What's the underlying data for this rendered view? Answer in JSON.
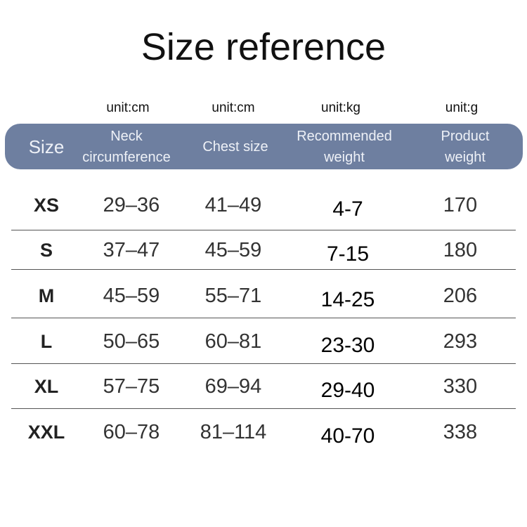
{
  "title": "Size reference",
  "units": [
    "unit:cm",
    "unit:cm",
    "unit:kg",
    "unit:g"
  ],
  "header": {
    "color": "#6e7fa0",
    "columns": [
      [
        "Size"
      ],
      [
        "Neck",
        "circumference"
      ],
      [
        "Chest size"
      ],
      [
        "Recommended",
        "weight"
      ],
      [
        "Product",
        "weight"
      ]
    ]
  },
  "rows": [
    [
      "XS",
      "29–36",
      "41–49",
      "4-7",
      "170"
    ],
    [
      "S",
      "37–47",
      "45–59",
      "7-15",
      "180"
    ],
    [
      "M",
      "45–59",
      "55–71",
      "14-25",
      "206"
    ],
    [
      "L",
      "50–65",
      "60–81",
      "23-30",
      "293"
    ],
    [
      "XL",
      "57–75",
      "69–94",
      "29-40",
      "330"
    ],
    [
      "XXL",
      "60–78",
      "81–114",
      "40-70",
      "338"
    ]
  ]
}
